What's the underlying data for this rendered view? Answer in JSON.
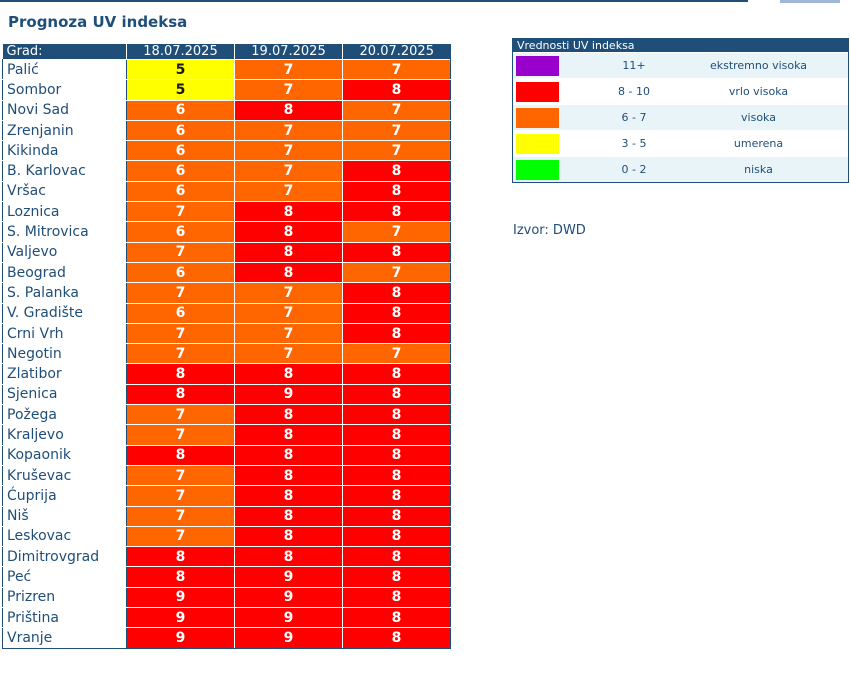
{
  "page": {
    "title": "Prognoza UV indeksa"
  },
  "colors": {
    "yellow": "#ffff00",
    "orange": "#ff6600",
    "red": "#ff0000",
    "purple": "#9900cc",
    "green": "#00ff00",
    "header": "#1f4e79"
  },
  "table": {
    "header_city": "Grad:",
    "dates": [
      "18.07.2025",
      "19.07.2025",
      "20.07.2025"
    ],
    "rows": [
      {
        "city": "Palić",
        "values": [
          "5",
          "7",
          "7"
        ],
        "levels": [
          "yellow",
          "orange",
          "orange"
        ]
      },
      {
        "city": "Sombor",
        "values": [
          "5",
          "7",
          "8"
        ],
        "levels": [
          "yellow",
          "orange",
          "red"
        ]
      },
      {
        "city": "Novi Sad",
        "values": [
          "6",
          "8",
          "7"
        ],
        "levels": [
          "orange",
          "red",
          "orange"
        ]
      },
      {
        "city": "Zrenjanin",
        "values": [
          "6",
          "7",
          "7"
        ],
        "levels": [
          "orange",
          "orange",
          "orange"
        ]
      },
      {
        "city": "Kikinda",
        "values": [
          "6",
          "7",
          "7"
        ],
        "levels": [
          "orange",
          "orange",
          "orange"
        ]
      },
      {
        "city": "B. Karlovac",
        "values": [
          "6",
          "7",
          "8"
        ],
        "levels": [
          "orange",
          "orange",
          "red"
        ]
      },
      {
        "city": "Vršac",
        "values": [
          "6",
          "7",
          "8"
        ],
        "levels": [
          "orange",
          "orange",
          "red"
        ]
      },
      {
        "city": "Loznica",
        "values": [
          "7",
          "8",
          "8"
        ],
        "levels": [
          "orange",
          "red",
          "red"
        ]
      },
      {
        "city": "S. Mitrovica",
        "values": [
          "6",
          "8",
          "7"
        ],
        "levels": [
          "orange",
          "red",
          "orange"
        ]
      },
      {
        "city": "Valjevo",
        "values": [
          "7",
          "8",
          "8"
        ],
        "levels": [
          "orange",
          "red",
          "red"
        ]
      },
      {
        "city": "Beograd",
        "values": [
          "6",
          "8",
          "7"
        ],
        "levels": [
          "orange",
          "red",
          "orange"
        ]
      },
      {
        "city": "S. Palanka",
        "values": [
          "7",
          "7",
          "8"
        ],
        "levels": [
          "orange",
          "orange",
          "red"
        ]
      },
      {
        "city": "V. Gradište",
        "values": [
          "6",
          "7",
          "8"
        ],
        "levels": [
          "orange",
          "orange",
          "red"
        ]
      },
      {
        "city": "Crni Vrh",
        "values": [
          "7",
          "7",
          "8"
        ],
        "levels": [
          "orange",
          "orange",
          "red"
        ]
      },
      {
        "city": "Negotin",
        "values": [
          "7",
          "7",
          "7"
        ],
        "levels": [
          "orange",
          "orange",
          "orange"
        ]
      },
      {
        "city": "Zlatibor",
        "values": [
          "8",
          "8",
          "8"
        ],
        "levels": [
          "red",
          "red",
          "red"
        ]
      },
      {
        "city": "Sjenica",
        "values": [
          "8",
          "9",
          "8"
        ],
        "levels": [
          "red",
          "red",
          "red"
        ]
      },
      {
        "city": "Požega",
        "values": [
          "7",
          "8",
          "8"
        ],
        "levels": [
          "orange",
          "red",
          "red"
        ]
      },
      {
        "city": "Kraljevo",
        "values": [
          "7",
          "8",
          "8"
        ],
        "levels": [
          "orange",
          "red",
          "red"
        ]
      },
      {
        "city": "Kopaonik",
        "values": [
          "8",
          "8",
          "8"
        ],
        "levels": [
          "red",
          "red",
          "red"
        ]
      },
      {
        "city": "Kruševac",
        "values": [
          "7",
          "8",
          "8"
        ],
        "levels": [
          "orange",
          "red",
          "red"
        ]
      },
      {
        "city": "Ćuprija",
        "values": [
          "7",
          "8",
          "8"
        ],
        "levels": [
          "orange",
          "red",
          "red"
        ]
      },
      {
        "city": "Niš",
        "values": [
          "7",
          "8",
          "8"
        ],
        "levels": [
          "orange",
          "red",
          "red"
        ]
      },
      {
        "city": "Leskovac",
        "values": [
          "7",
          "8",
          "8"
        ],
        "levels": [
          "orange",
          "red",
          "red"
        ]
      },
      {
        "city": "Dimitrovgrad",
        "values": [
          "8",
          "8",
          "8"
        ],
        "levels": [
          "red",
          "red",
          "red"
        ]
      },
      {
        "city": "Peć",
        "values": [
          "8",
          "9",
          "8"
        ],
        "levels": [
          "red",
          "red",
          "red"
        ]
      },
      {
        "city": "Prizren",
        "values": [
          "9",
          "9",
          "8"
        ],
        "levels": [
          "red",
          "red",
          "red"
        ]
      },
      {
        "city": "Priština",
        "values": [
          "9",
          "9",
          "8"
        ],
        "levels": [
          "red",
          "red",
          "red"
        ]
      },
      {
        "city": "Vranje",
        "values": [
          "9",
          "9",
          "8"
        ],
        "levels": [
          "red",
          "red",
          "red"
        ]
      }
    ]
  },
  "legend": {
    "title": "Vrednosti UV indeksa",
    "items": [
      {
        "color": "#9900cc",
        "range": "11+",
        "label": "ekstremno visoka"
      },
      {
        "color": "#ff0000",
        "range": "8 - 10",
        "label": "vrlo visoka"
      },
      {
        "color": "#ff6600",
        "range": "6 - 7",
        "label": "visoka"
      },
      {
        "color": "#ffff00",
        "range": "3 - 5",
        "label": "umerena"
      },
      {
        "color": "#00ff00",
        "range": "0 - 2",
        "label": "niska"
      }
    ]
  },
  "source": "Izvor: DWD"
}
